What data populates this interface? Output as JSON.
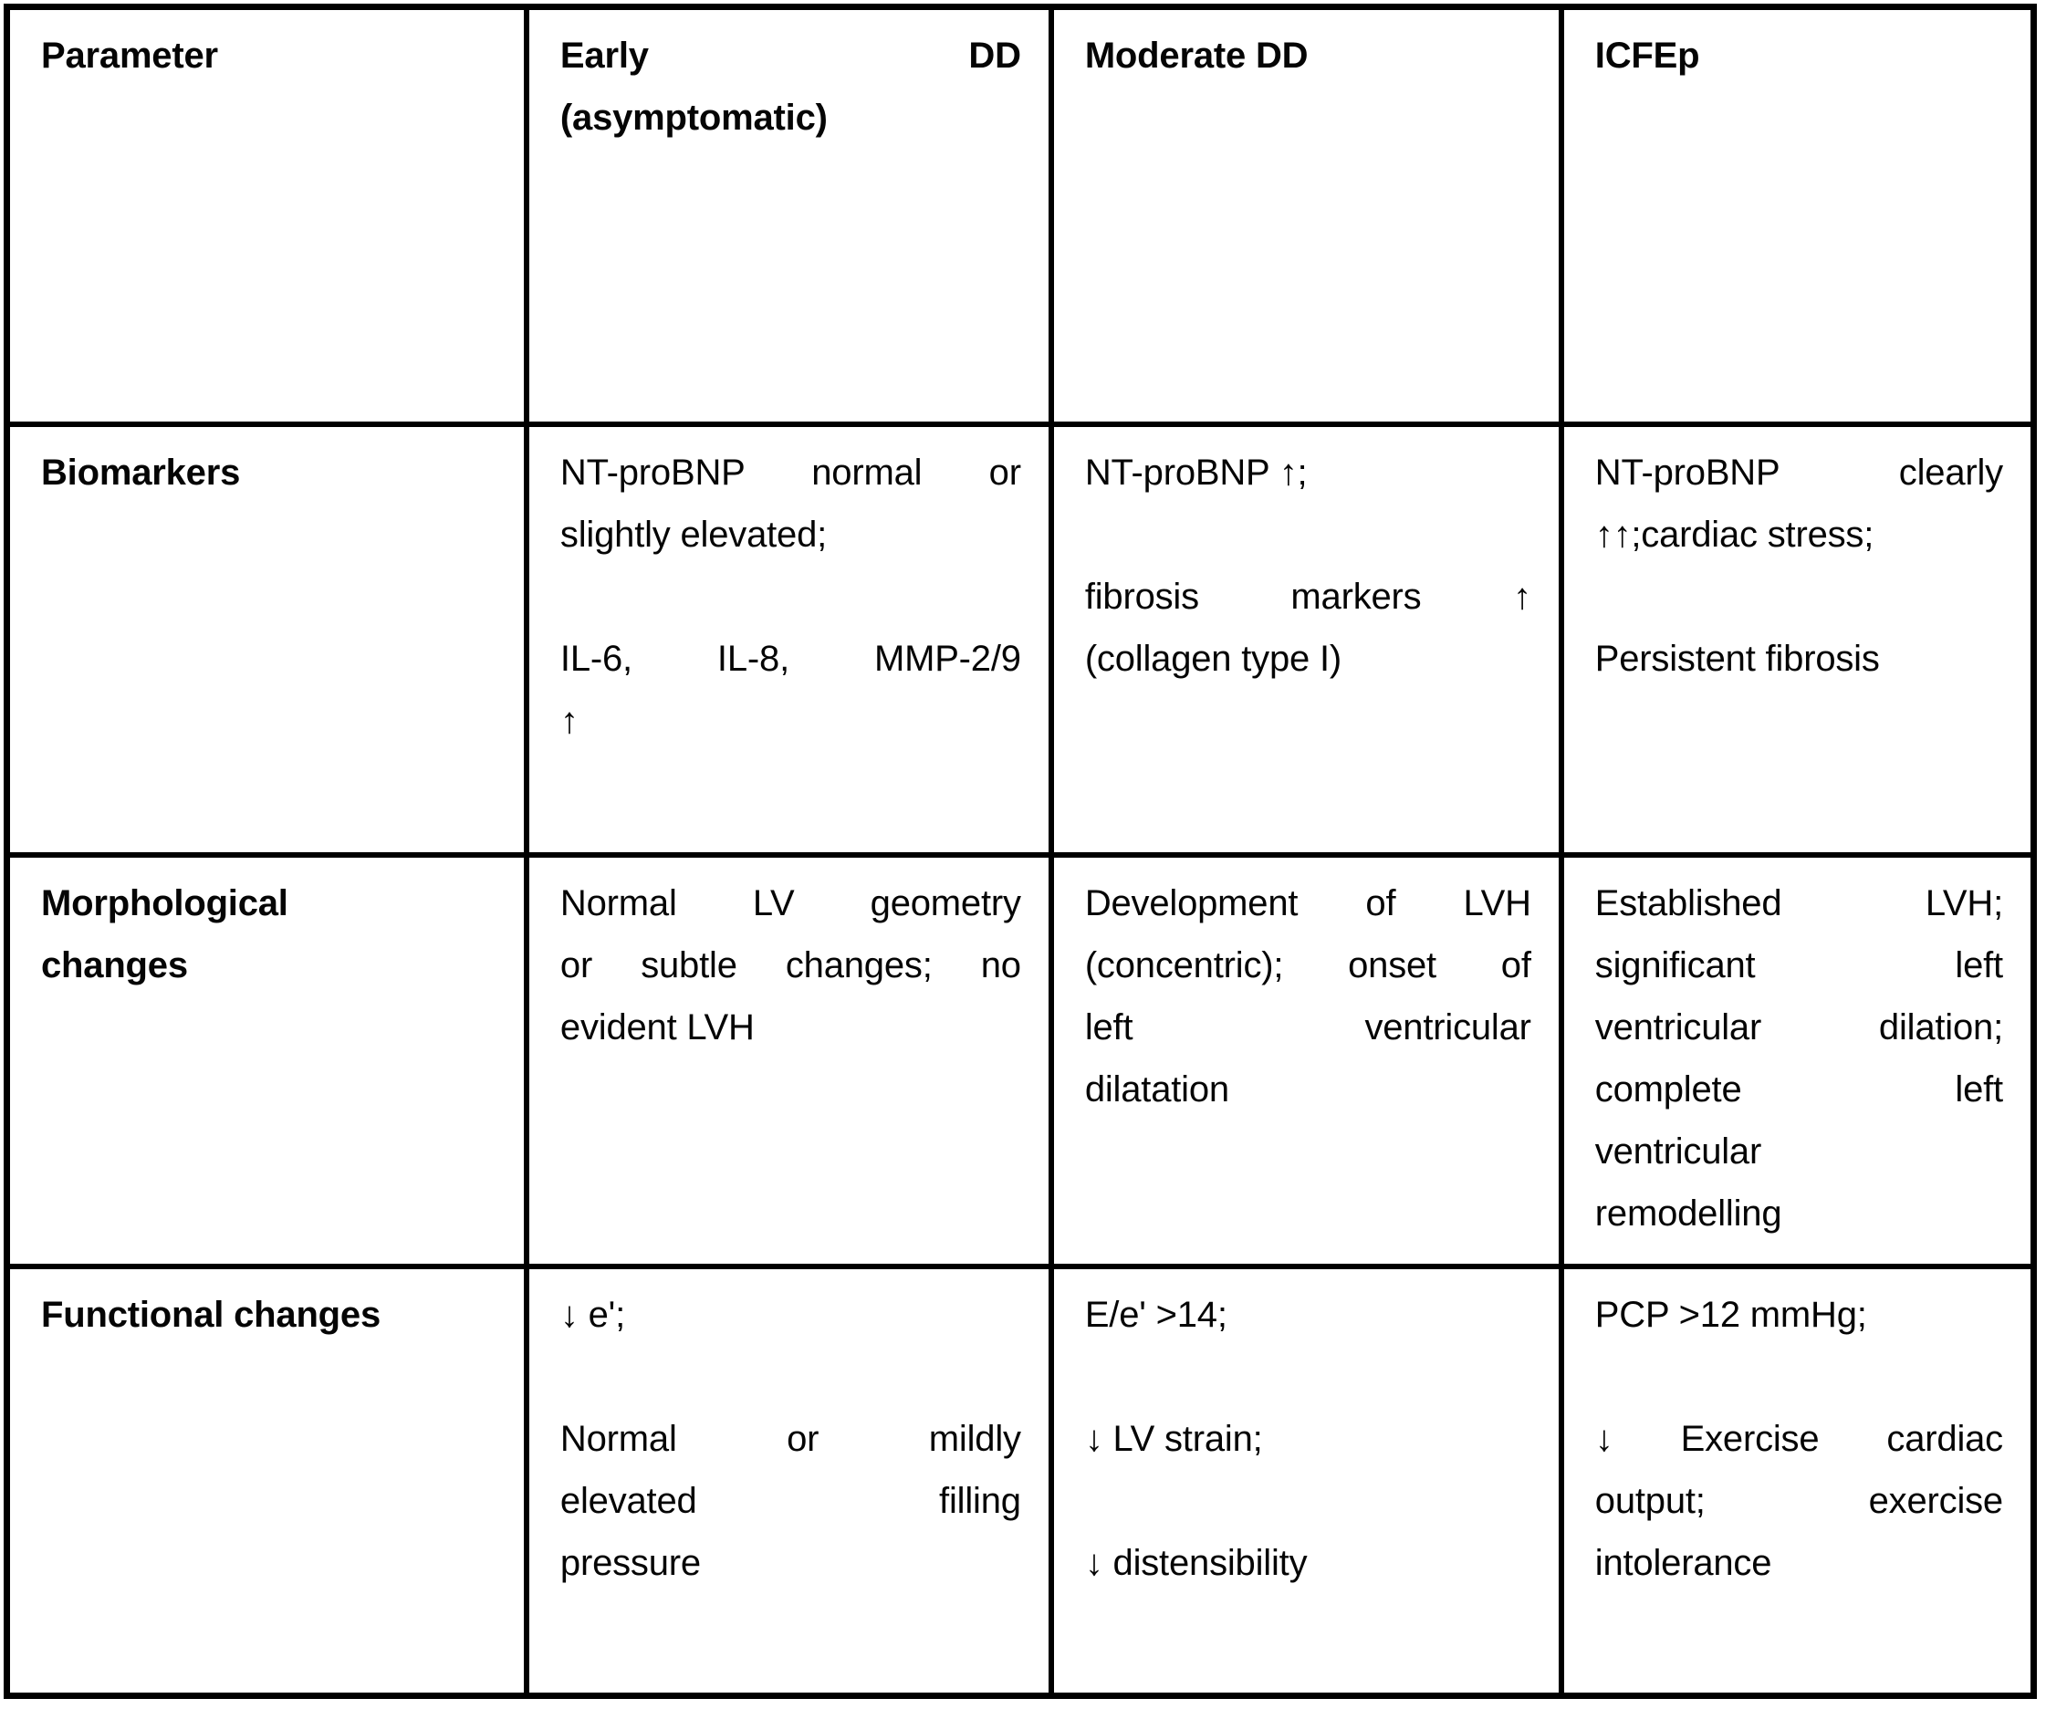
{
  "style": {
    "grid_line_color": "#000000",
    "cell_background": "#ffffff",
    "text_color": "#050505"
  },
  "grid": {
    "header": [
      "Parameter",
      "Early DD\n(asymptomatic)",
      "Moderate DD",
      "ICFEp"
    ],
    "rows": [
      [
        "Biomarkers",
        "NT-proBNP normal or\nslightly elevated;\n\nIL-6, IL-8, MMP-2/9\n↑",
        "NT-proBNP ↑;\n\nfibrosis markers ↑\n(collagen type I)",
        "NT-proBNP clearly\n↑↑;cardiac stress;\n\nPersistent fibrosis"
      ],
      [
        "Morphological\nchanges",
        "Normal LV geometry\nor subtle changes; no\nevident LVH",
        "Development of LVH\n(concentric); onset of\nleft ventricular\ndilatation",
        "Established LVH;\nsignificant left\nventricular dilation;\ncomplete left\nventricular\nremodelling"
      ],
      [
        "Functional changes",
        "↓ e';\n\nNormal or mildly\nelevated filling\npressure",
        "E/e' >14;\n\n↓ LV strain;\n\n↓ distensibility",
        "PCP >12 mmHg;\n\n↓ Exercise cardiac\noutput; exercise\nintolerance"
      ]
    ]
  }
}
